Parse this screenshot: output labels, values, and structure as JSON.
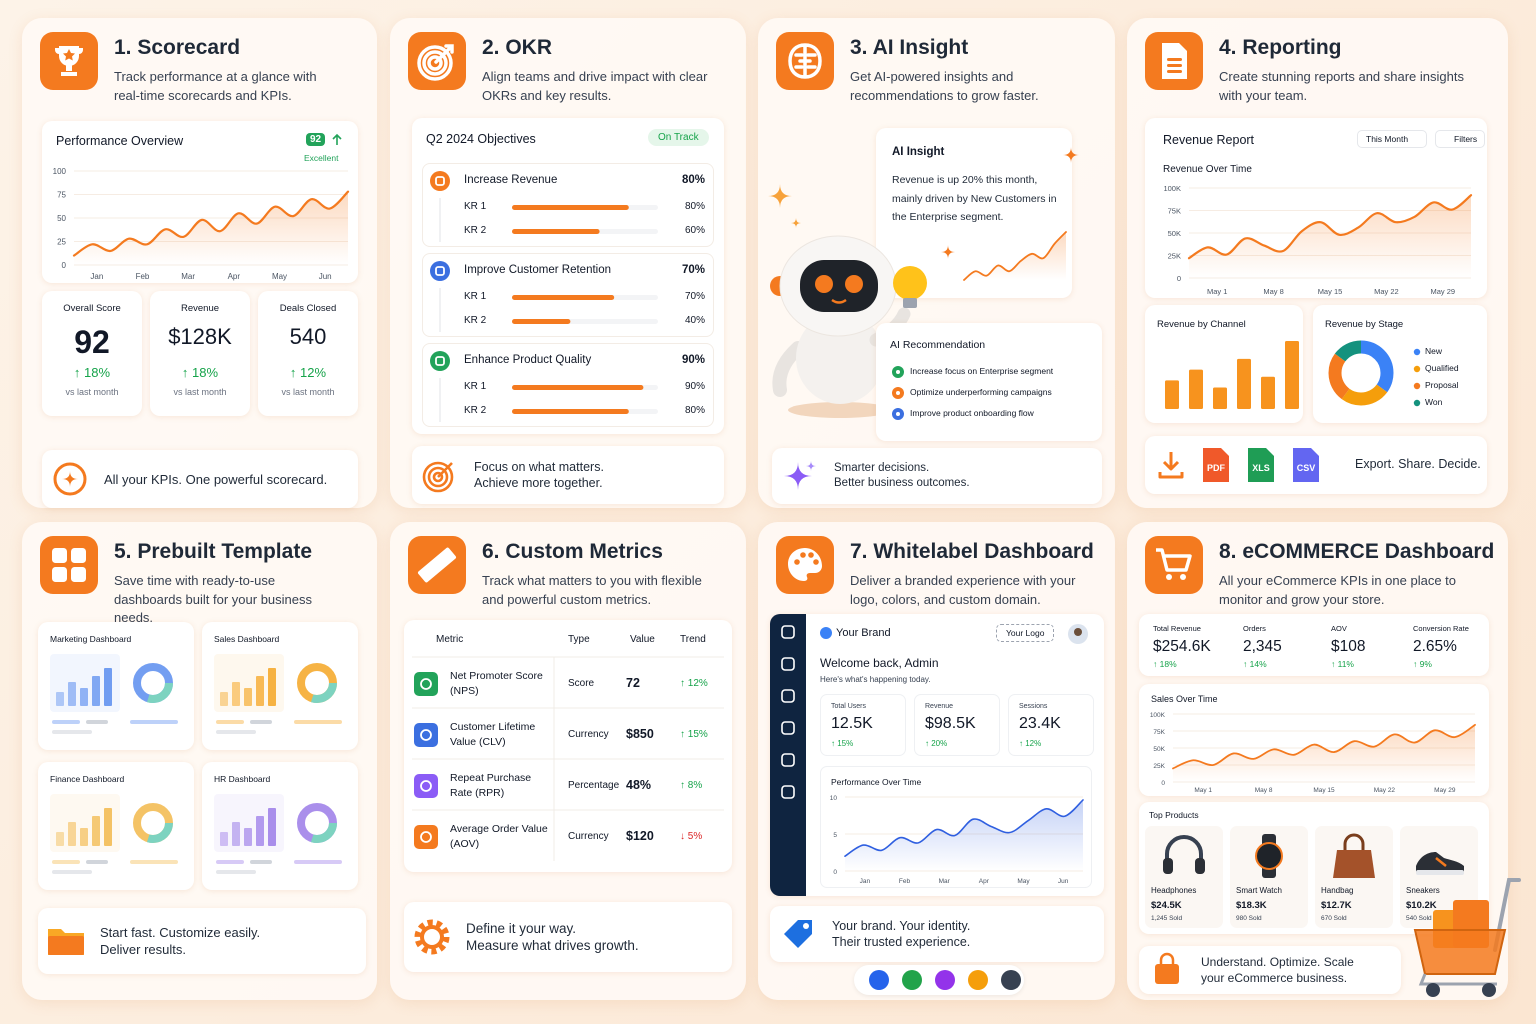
{
  "scorecard": {
    "title": "1. Scorecard",
    "description": "Track performance at a glance with real-time scorecards and KPIs.",
    "chart": {
      "title": "Performance Overview",
      "score": 92,
      "score_label": "Excellent",
      "color": "#f47a1f",
      "ylim": [
        0,
        100
      ],
      "yticks": [
        0,
        25,
        50,
        75,
        100
      ],
      "x_labels": [
        "Jan",
        "Feb",
        "Mar",
        "Apr",
        "May",
        "Jun"
      ],
      "values": [
        10,
        22,
        15,
        28,
        22,
        38,
        30,
        48,
        36,
        55,
        44,
        62,
        52,
        70,
        60,
        78
      ]
    },
    "kpis": [
      {
        "label": "Overall Score",
        "value": "92",
        "change": "↑ 18%",
        "note": "vs last month"
      },
      {
        "label": "Revenue",
        "value": "$128K",
        "change": "↑ 18%",
        "note": "vs last month"
      },
      {
        "label": "Deals Closed",
        "value": "540",
        "change": "↑ 12%",
        "note": "vs last month"
      }
    ],
    "footer": [
      "All your KPIs. One powerful scorecard."
    ]
  },
  "okr": {
    "title": "2. OKR",
    "description": "Align teams and drive impact with clear OKRs and key results.",
    "panel_title": "Q2 2024 Objectives",
    "status": "On Track",
    "objectives": [
      {
        "name": "Increase Revenue",
        "color": "#f47a1f",
        "progress": {
          "value": 80,
          "label": "80%"
        },
        "key_results": [
          {
            "name": "KR 1",
            "progress": {
              "value": 80,
              "label": "80%"
            }
          },
          {
            "name": "KR 2",
            "progress": {
              "value": 60,
              "label": "60%"
            }
          }
        ]
      },
      {
        "name": "Improve Customer Retention",
        "color": "#3b6fe0",
        "progress": {
          "value": 70,
          "label": "70%"
        },
        "key_results": [
          {
            "name": "KR 1",
            "progress": {
              "value": 70,
              "label": "70%"
            }
          },
          {
            "name": "KR 2",
            "progress": {
              "value": 40,
              "label": "40%"
            }
          }
        ]
      },
      {
        "name": "Enhance Product Quality",
        "color": "#22a35a",
        "progress": {
          "value": 90,
          "label": "90%"
        },
        "key_results": [
          {
            "name": "KR 1",
            "progress": {
              "value": 90,
              "label": "90%"
            }
          },
          {
            "name": "KR 2",
            "progress": {
              "value": 80,
              "label": "80%"
            }
          }
        ]
      }
    ],
    "footer": [
      "Focus on what matters.",
      "Achieve more together."
    ]
  },
  "ai_insight": {
    "title": "3. AI Insight",
    "description": "Get AI-powered insights and recommendations to grow faster.",
    "insight": {
      "title": "AI Insight",
      "text": "Revenue is up 20% this month, mainly driven by New Customers in the Enterprise segment.",
      "color": "#f47a1f",
      "values": [
        10,
        22,
        16,
        30,
        22,
        36,
        46,
        40,
        60,
        76
      ]
    },
    "recommendation_title": "AI Recommendation",
    "recommendations": [
      {
        "text": "Increase focus on Enterprise segment",
        "color": "#22a35a"
      },
      {
        "text": "Optimize underperforming campaigns",
        "color": "#f47a1f"
      },
      {
        "text": "Improve product onboarding flow",
        "color": "#3b6fe0"
      }
    ],
    "footer": [
      "Smarter decisions.",
      "Better business outcomes."
    ]
  },
  "reporting": {
    "title": "4. Reporting",
    "description": "Create stunning reports and share insights with your team.",
    "report_title": "Revenue Report",
    "period": "This Month",
    "filter": "Filters",
    "chart": {
      "title": "Revenue Over Time",
      "color": "#f47a1f",
      "ylim": [
        0,
        100000
      ],
      "yticks": [
        0,
        {
          "value": 25000,
          "label": "25K"
        },
        {
          "value": 50000,
          "label": "50K"
        },
        {
          "value": 75000,
          "label": "75K"
        },
        {
          "value": 100000,
          "label": "100K"
        }
      ],
      "x_labels": [
        "May 1",
        "May 8",
        "May 15",
        "May 22",
        "May 29"
      ],
      "values": [
        22000,
        34000,
        26000,
        44000,
        36000,
        30000,
        52000,
        62000,
        48000,
        56000,
        72000,
        62000,
        68000,
        84000,
        76000,
        92000
      ]
    },
    "channel": {
      "title": "Revenue by Channel",
      "color": "#f7931e",
      "values": [
        40,
        55,
        30,
        70,
        45,
        95
      ]
    },
    "stage": {
      "title": "Revenue by Stage",
      "segments": [
        {
          "name": "New",
          "value": 35,
          "color": "#3b82f6"
        },
        {
          "name": "Qualified",
          "value": 25,
          "color": "#f59e0b"
        },
        {
          "name": "Proposal",
          "value": 25,
          "color": "#f47a1f"
        },
        {
          "name": "Won",
          "value": 15,
          "color": "#14927e"
        }
      ]
    },
    "exports": [
      {
        "label": "PDF",
        "color": "#f0592a"
      },
      {
        "label": "XLS",
        "color": "#1f9d55"
      },
      {
        "label": "CSV",
        "color": "#6366f1"
      }
    ],
    "footer": [
      "Export. Share. Decide."
    ]
  },
  "templates": {
    "title": "5. Prebuilt Template",
    "description": "Save time with ready-to-use dashboards built for your business needs.",
    "items": [
      {
        "name": "Marketing Dashboard",
        "color": "#5b8def"
      },
      {
        "name": "Sales Dashboard",
        "color": "#f5a623"
      },
      {
        "name": "Finance Dashboard",
        "color": "#f2b84b"
      },
      {
        "name": "HR Dashboard",
        "color": "#9b7be8"
      }
    ],
    "footer": [
      "Start fast. Customize easily.",
      "Deliver results."
    ]
  },
  "custom_metrics": {
    "title": "6. Custom Metrics",
    "description": "Track what matters to you with flexible and powerful custom metrics.",
    "columns": [
      "Metric",
      "Type",
      "Value",
      "Trend"
    ],
    "rows": [
      {
        "metric": "Net Promoter Score (NPS)",
        "type": "Score",
        "value": "72",
        "trend": "↑ 12%",
        "icon_color": "#22a35a",
        "trend_color": "#16a34a"
      },
      {
        "metric": "Customer Lifetime Value (CLV)",
        "type": "Currency",
        "value": "$850",
        "trend": "↑ 15%",
        "icon_color": "#3b6fe0",
        "trend_color": "#16a34a"
      },
      {
        "metric": "Repeat Purchase Rate (RPR)",
        "type": "Percentage",
        "value": "48%",
        "trend": "↑ 8%",
        "icon_color": "#8b5cf6",
        "trend_color": "#16a34a"
      },
      {
        "metric": "Average Order Value (AOV)",
        "type": "Currency",
        "value": "$120",
        "trend": "↓ 5%",
        "icon_color": "#f47a1f",
        "trend_color": "#dc2626"
      }
    ],
    "footer": [
      "Define it your way.",
      "Measure what drives growth."
    ]
  },
  "whitelabel": {
    "title": "7. Whitelabel Dashboard",
    "description": "Deliver a branded experience with your logo, colors, and custom domain.",
    "brand": "Your Brand",
    "logo": "Your Logo",
    "welcome": "Welcome back, Admin",
    "subtitle": "Here's what's happening today.",
    "stats": [
      {
        "label": "Total Users",
        "value": "12.5K",
        "change": "↑ 15%"
      },
      {
        "label": "Revenue",
        "value": "$98.5K",
        "change": "↑ 20%"
      },
      {
        "label": "Sessions",
        "value": "23.4K",
        "change": "↑ 12%"
      }
    ],
    "chart": {
      "title": "Performance Over Time",
      "color": "#2f5fe0",
      "ylim": [
        0,
        10
      ],
      "yticks": [
        0,
        5,
        10
      ],
      "x_labels": [
        "Jan",
        "Feb",
        "Mar",
        "Apr",
        "May",
        "Jun"
      ],
      "values": [
        2,
        3.5,
        2.8,
        4.5,
        3.8,
        5.6,
        4.8,
        7,
        6,
        5.2,
        6.8,
        8.4,
        7.4,
        9.6
      ]
    },
    "footer": [
      "Your brand. Your identity.",
      "Their trusted experience."
    ],
    "colors": [
      "#2563eb",
      "#22a34a",
      "#9333ea",
      "#f59e0b",
      "#374151"
    ]
  },
  "ecommerce": {
    "title": "8. eCOMMERCE Dashboard",
    "description": "All your eCommerce KPIs in one place to monitor and grow your store.",
    "kpis": [
      {
        "label": "Total Revenue",
        "value": "$254.6K",
        "change": "↑ 18%"
      },
      {
        "label": "Orders",
        "value": "2,345",
        "change": "↑ 14%"
      },
      {
        "label": "AOV",
        "value": "$108",
        "change": "↑ 11%"
      },
      {
        "label": "Conversion Rate",
        "value": "2.65%",
        "change": "↑ 9%"
      }
    ],
    "chart": {
      "title": "Sales Over Time",
      "color": "#f47a1f",
      "ylim": [
        0,
        100000
      ],
      "yticks": [
        0,
        {
          "value": 25000,
          "label": "25K"
        },
        {
          "value": 50000,
          "label": "50K"
        },
        {
          "value": 75000,
          "label": "75K"
        },
        {
          "value": 100000,
          "label": "100K"
        }
      ],
      "x_labels": [
        "May 1",
        "May 8",
        "May 15",
        "May 22",
        "May 29"
      ],
      "values": [
        20000,
        32000,
        25000,
        42000,
        34000,
        48000,
        40000,
        55000,
        44000,
        60000,
        52000,
        70000,
        58000,
        76000,
        66000,
        84000
      ]
    },
    "products_title": "Top Products",
    "products": [
      {
        "name": "Headphones",
        "revenue": "$24.5K",
        "sold": "1,245 Sold"
      },
      {
        "name": "Smart Watch",
        "revenue": "$18.3K",
        "sold": "980 Sold"
      },
      {
        "name": "Handbag",
        "revenue": "$12.7K",
        "sold": "670 Sold"
      },
      {
        "name": "Sneakers",
        "revenue": "$10.2K",
        "sold": "540 Sold"
      }
    ],
    "footer": [
      "Understand. Optimize. Scale",
      "your eCommerce business."
    ]
  }
}
